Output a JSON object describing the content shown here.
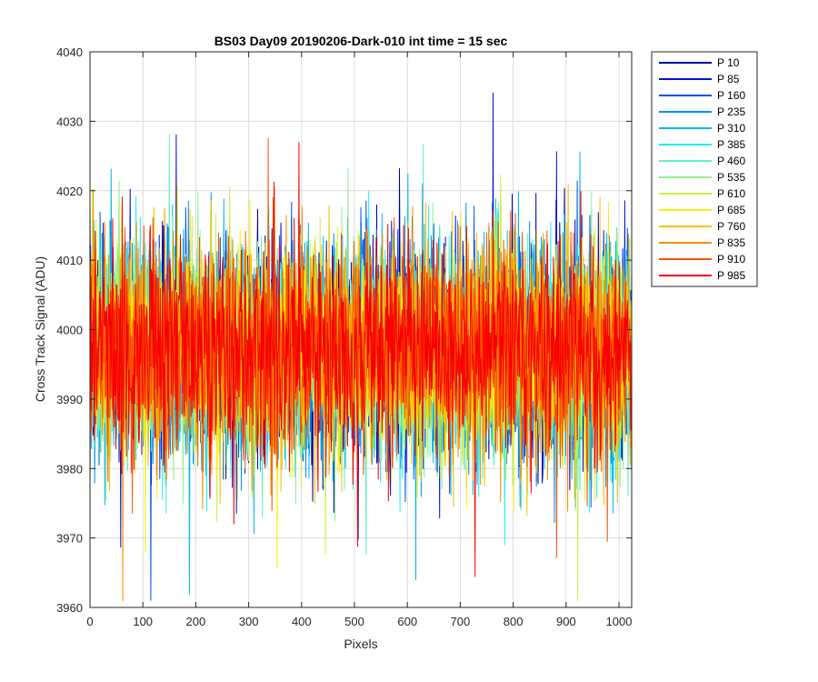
{
  "chart_data": {
    "type": "line",
    "title": "BS03 Day09 20190206-Dark-010 int time = 15 sec",
    "xlabel": "Pixels",
    "ylabel": "Cross Track Signal (ADU)",
    "xlim": [
      0,
      1024
    ],
    "ylim": [
      3960,
      4040
    ],
    "xticks": [
      0,
      100,
      200,
      300,
      400,
      500,
      600,
      700,
      800,
      900,
      1000
    ],
    "yticks": [
      3960,
      3970,
      3980,
      3990,
      4000,
      4010,
      4020,
      4030,
      4040
    ],
    "grid": true,
    "legend_position": "outside-top-right",
    "series": [
      {
        "name": "P 10",
        "color": "#0000a8",
        "mean": 3997,
        "spread": 7.5
      },
      {
        "name": "P 85",
        "color": "#0010d8",
        "mean": 3997,
        "spread": 7.5
      },
      {
        "name": "P 160",
        "color": "#0050f0",
        "mean": 3997,
        "spread": 7.5
      },
      {
        "name": "P 235",
        "color": "#0090f0",
        "mean": 3997,
        "spread": 7.5
      },
      {
        "name": "P 310",
        "color": "#00b8f0",
        "mean": 3997,
        "spread": 7.5
      },
      {
        "name": "P 385",
        "color": "#20f0f0",
        "mean": 3997,
        "spread": 7.5
      },
      {
        "name": "P 460",
        "color": "#60f0c0",
        "mean": 3997,
        "spread": 7.5
      },
      {
        "name": "P 535",
        "color": "#90f090",
        "mean": 3997,
        "spread": 7.5
      },
      {
        "name": "P 610",
        "color": "#c8f040",
        "mean": 3997,
        "spread": 7.5
      },
      {
        "name": "P 685",
        "color": "#f8f000",
        "mean": 3997,
        "spread": 7.5
      },
      {
        "name": "P 760",
        "color": "#f8c000",
        "mean": 3997,
        "spread": 7.5
      },
      {
        "name": "P 835",
        "color": "#f89000",
        "mean": 3997,
        "spread": 7.5
      },
      {
        "name": "P 910",
        "color": "#f85000",
        "mean": 3997,
        "spread": 7.5
      },
      {
        "name": "P 985",
        "color": "#f80000",
        "mean": 3997,
        "spread": 7.5
      }
    ]
  }
}
